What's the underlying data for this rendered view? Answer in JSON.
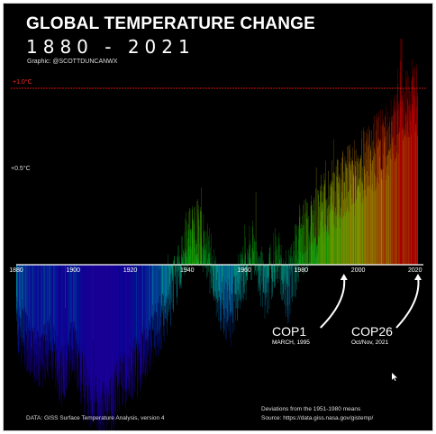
{
  "header": {
    "title": "GLOBAL TEMPERATURE CHANGE",
    "years": "1880 - 2021",
    "credit": "Graphic: @SCOTTDUNCANWX"
  },
  "annotations": {
    "cop1": {
      "label": "COP1",
      "date": "MARCH, 1995",
      "year": 1995
    },
    "cop26": {
      "label": "COP26",
      "date": "Oct/Nov, 2021",
      "year": 2021
    }
  },
  "footer": {
    "data_source": "DATA: GISS Surface Temperature Analysis, version 4",
    "baseline": "Deviations from the 1951-1980 means",
    "source_url": "Source: https://data.giss.nasa.gov/gistemp/"
  },
  "colors": {
    "ref_line": "#d01010",
    "ref_label": "#ff2a2a",
    "axis": "#ffffff"
  },
  "chart_data": {
    "type": "bar",
    "title": "GLOBAL TEMPERATURE CHANGE",
    "subtitle": "1880 - 2021",
    "ylabel": "",
    "ylim": [
      -1.05,
      1.3
    ],
    "y_labels": [
      {
        "value": 1.0,
        "text": "+1.0°C",
        "color": "#ff2a2a"
      },
      {
        "value": 0.5,
        "text": "+0.5°C",
        "color": "#dddddd"
      }
    ],
    "x_tick_labels": [
      "1880",
      "1900",
      "1920",
      "1940",
      "1960",
      "1980",
      "2000",
      "2020"
    ],
    "x_ticks": [
      1880,
      1900,
      1920,
      1940,
      1960,
      1980,
      2000,
      2020
    ],
    "xlim": [
      1880,
      2021
    ],
    "grid": false,
    "anchors": [
      [
        1880,
        -0.35
      ],
      [
        1884,
        -0.45
      ],
      [
        1888,
        -0.55
      ],
      [
        1892,
        -0.45
      ],
      [
        1896,
        -0.65
      ],
      [
        1900,
        -0.45
      ],
      [
        1904,
        -0.7
      ],
      [
        1908,
        -0.8
      ],
      [
        1912,
        -0.85
      ],
      [
        1916,
        -0.7
      ],
      [
        1920,
        -0.6
      ],
      [
        1924,
        -0.55
      ],
      [
        1928,
        -0.4
      ],
      [
        1932,
        -0.3
      ],
      [
        1936,
        -0.1
      ],
      [
        1940,
        0.12
      ],
      [
        1944,
        0.2
      ],
      [
        1948,
        0.05
      ],
      [
        1952,
        -0.2
      ],
      [
        1956,
        -0.3
      ],
      [
        1960,
        -0.05
      ],
      [
        1964,
        0.1
      ],
      [
        1968,
        -0.15
      ],
      [
        1972,
        0.05
      ],
      [
        1976,
        -0.15
      ],
      [
        1980,
        0.12
      ],
      [
        1984,
        0.2
      ],
      [
        1988,
        0.3
      ],
      [
        1992,
        0.4
      ],
      [
        1996,
        0.45
      ],
      [
        2000,
        0.5
      ],
      [
        2004,
        0.6
      ],
      [
        2008,
        0.65
      ],
      [
        2012,
        0.7
      ],
      [
        2016,
        0.85
      ],
      [
        2020,
        0.95
      ],
      [
        2021,
        0.92
      ]
    ],
    "bars_per_year": 12,
    "note": "Each bar column depicts one month of anomaly; values around anchor trend with monthly variability."
  }
}
